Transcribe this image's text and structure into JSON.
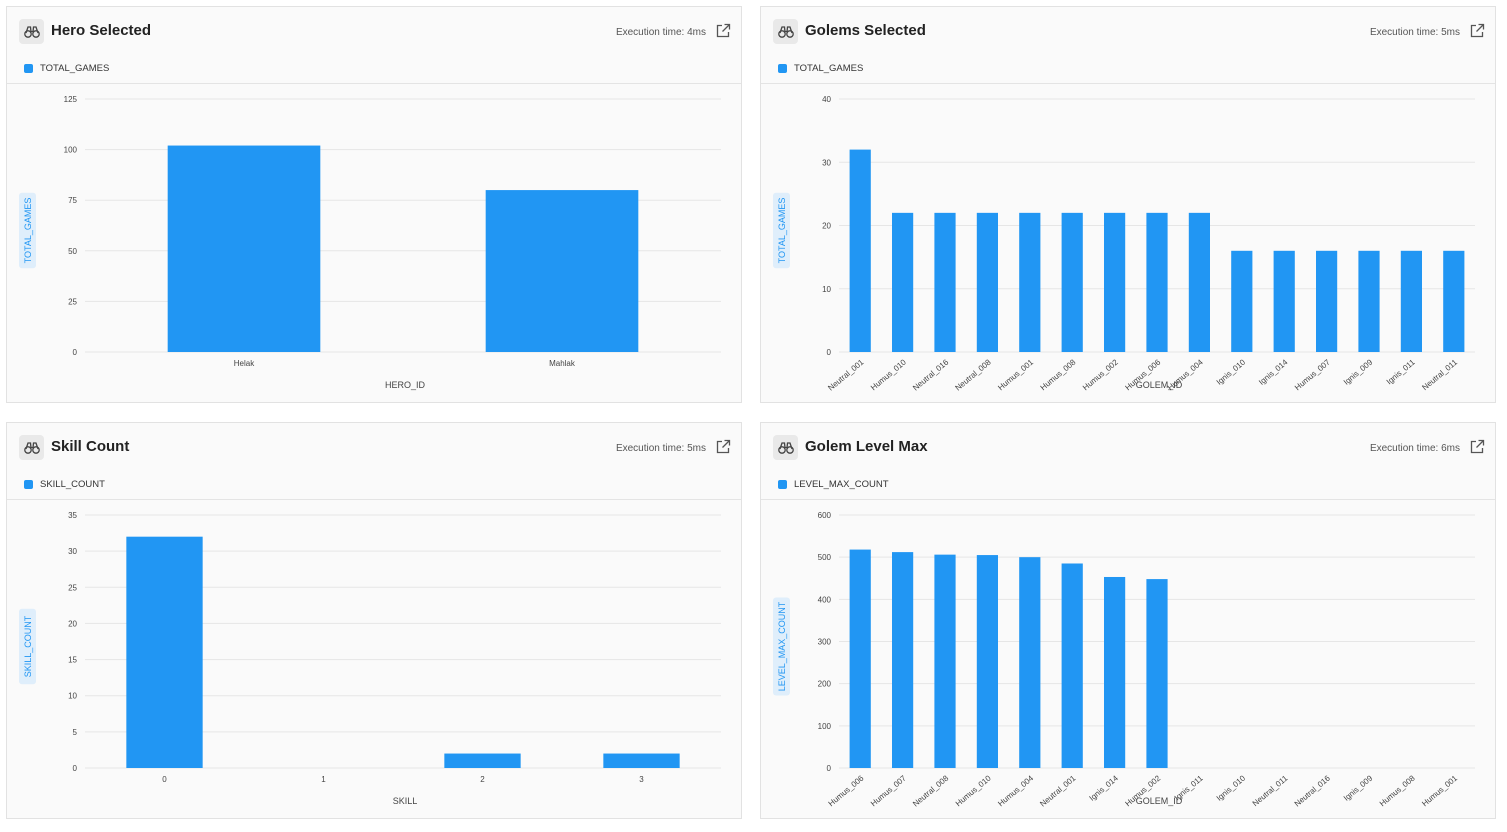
{
  "panels": [
    {
      "title": "Hero Selected",
      "execution_time": "Execution time: 4ms",
      "legend": "TOTAL_GAMES",
      "icon": "binoculars-icon",
      "open_icon": "external-link-icon"
    },
    {
      "title": "Golems Selected",
      "execution_time": "Execution time: 5ms",
      "legend": "TOTAL_GAMES",
      "icon": "binoculars-icon",
      "open_icon": "external-link-icon"
    },
    {
      "title": "Skill Count",
      "execution_time": "Execution time: 5ms",
      "legend": "SKILL_COUNT",
      "icon": "binoculars-icon",
      "open_icon": "external-link-icon"
    },
    {
      "title": "Golem Level Max",
      "execution_time": "Execution time: 6ms",
      "legend": "LEVEL_MAX_COUNT",
      "icon": "binoculars-icon",
      "open_icon": "external-link-icon"
    }
  ],
  "colors": {
    "bar": "#2196f3",
    "grid": "#e6e6e6",
    "axis_text": "#444444",
    "ylabel_bg": "#dfeefb",
    "ylabel_text": "#2196f3"
  },
  "chart_data": [
    {
      "type": "bar",
      "title": "Hero Selected",
      "xlabel": "HERO_ID",
      "ylabel": "TOTAL_GAMES",
      "categories": [
        "Helak",
        "Mahlak"
      ],
      "series": [
        {
          "name": "TOTAL_GAMES",
          "values": [
            102,
            80
          ]
        }
      ],
      "ylim": [
        0,
        125
      ],
      "yticks": [
        0,
        25,
        50,
        75,
        100,
        125
      ],
      "rotate_x": false
    },
    {
      "type": "bar",
      "title": "Golems Selected",
      "xlabel": "GOLEM_ID",
      "ylabel": "TOTAL_GAMES",
      "categories": [
        "Neutral_001",
        "Humus_010",
        "Neutral_016",
        "Neutral_008",
        "Humus_001",
        "Humus_008",
        "Humus_002",
        "Humus_006",
        "Humus_004",
        "Ignis_010",
        "Ignis_014",
        "Humus_007",
        "Ignis_009",
        "Ignis_011",
        "Neutral_011"
      ],
      "series": [
        {
          "name": "TOTAL_GAMES",
          "values": [
            32,
            22,
            22,
            22,
            22,
            22,
            22,
            22,
            22,
            16,
            16,
            16,
            16,
            16,
            16
          ]
        }
      ],
      "ylim": [
        0,
        40
      ],
      "yticks": [
        0,
        10,
        20,
        30,
        40
      ],
      "rotate_x": true
    },
    {
      "type": "bar",
      "title": "Skill Count",
      "xlabel": "SKILL",
      "ylabel": "SKILL_COUNT",
      "categories": [
        "0",
        "1",
        "2",
        "3"
      ],
      "series": [
        {
          "name": "SKILL_COUNT",
          "values": [
            32,
            0,
            2,
            2
          ]
        }
      ],
      "ylim": [
        0,
        35
      ],
      "yticks": [
        0,
        5,
        10,
        15,
        20,
        25,
        30,
        35
      ],
      "rotate_x": false
    },
    {
      "type": "bar",
      "title": "Golem Level Max",
      "xlabel": "GOLEM_ID",
      "ylabel": "LEVEL_MAX_COUNT",
      "categories": [
        "Humus_006",
        "Humus_007",
        "Neutral_008",
        "Humus_010",
        "Humus_004",
        "Neutral_001",
        "Ignis_014",
        "Humus_002",
        "Ignis_011",
        "Ignis_010",
        "Neutral_011",
        "Neutral_016",
        "Ignis_009",
        "Humus_008",
        "Humus_001"
      ],
      "series": [
        {
          "name": "LEVEL_MAX_COUNT",
          "values": [
            518,
            512,
            506,
            505,
            500,
            485,
            453,
            448,
            0,
            0,
            0,
            0,
            0,
            0,
            0
          ]
        }
      ],
      "ylim": [
        0,
        600
      ],
      "yticks": [
        0,
        100,
        200,
        300,
        400,
        500,
        600
      ],
      "rotate_x": true
    }
  ]
}
